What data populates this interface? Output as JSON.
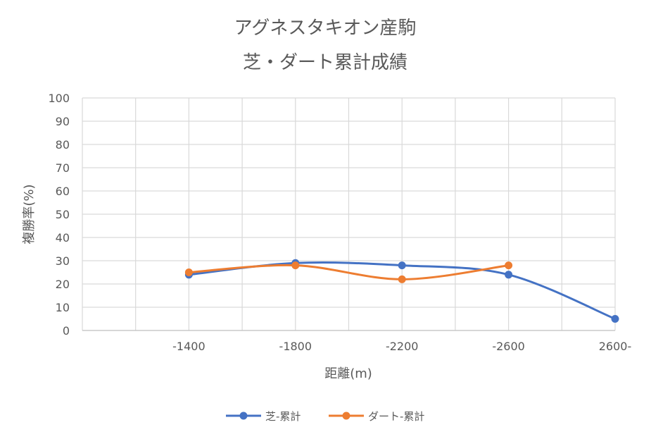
{
  "chart_data": {
    "type": "line",
    "title": "アグネスタキオン産駒",
    "subtitle": "芝・ダート累計成績",
    "xlabel": "距離(m)",
    "ylabel": "複勝率(%)",
    "categories": [
      "",
      "-1400",
      "",
      "-1800",
      "",
      "-2200",
      "",
      "-2600",
      "",
      "2600-"
    ],
    "ylim": [
      0,
      100
    ],
    "yticks": [
      0,
      10,
      20,
      30,
      40,
      50,
      60,
      70,
      80,
      90,
      100
    ],
    "grid": true,
    "smooth": true,
    "legend_position": "bottom",
    "series": [
      {
        "name": "芝-累計",
        "color": "#4472c4",
        "values": [
          null,
          24,
          null,
          29,
          null,
          28,
          null,
          24,
          null,
          5
        ]
      },
      {
        "name": "ダート-累計",
        "color": "#ed7d31",
        "values": [
          null,
          25,
          null,
          28,
          null,
          22,
          null,
          28,
          null,
          null
        ]
      }
    ]
  }
}
